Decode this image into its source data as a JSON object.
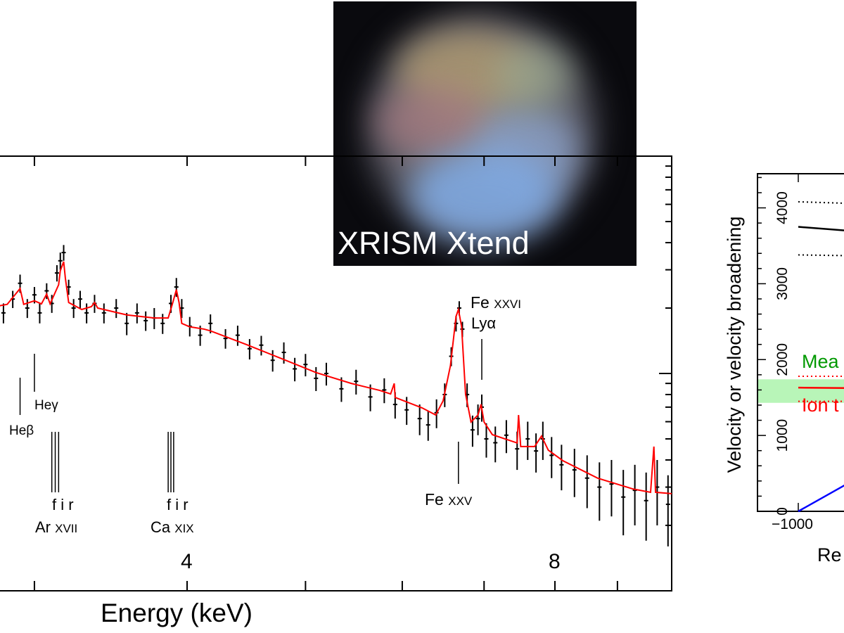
{
  "image_panel": {
    "title": "XRISM Xtend"
  },
  "chart_data": [
    {
      "type": "line",
      "xlabel": "Energy (keV)",
      "ylabel": "",
      "x_scale": "log",
      "y_scale": "log",
      "xlim": [
        2.81,
        10.0
      ],
      "ylim": [
        0.01,
        1
      ],
      "x_tick_labels": [
        "4",
        "8"
      ],
      "x_ticks": [
        3,
        4,
        5,
        6,
        7,
        8,
        9,
        10
      ],
      "grid": false,
      "model_color": "#ff0000",
      "data_color": "#000000",
      "model": [
        [
          2.81,
          0.205
        ],
        [
          2.85,
          0.208
        ],
        [
          2.92,
          0.246
        ],
        [
          2.94,
          0.208
        ],
        [
          3.0,
          0.216
        ],
        [
          3.04,
          0.209
        ],
        [
          3.07,
          0.232
        ],
        [
          3.09,
          0.209
        ],
        [
          3.14,
          0.256
        ],
        [
          3.15,
          0.297
        ],
        [
          3.17,
          0.327
        ],
        [
          3.18,
          0.275
        ],
        [
          3.2,
          0.212
        ],
        [
          3.28,
          0.197
        ],
        [
          3.34,
          0.203
        ],
        [
          3.36,
          0.212
        ],
        [
          3.38,
          0.2
        ],
        [
          3.57,
          0.186
        ],
        [
          3.76,
          0.18
        ],
        [
          3.86,
          0.18
        ],
        [
          3.89,
          0.208
        ],
        [
          3.92,
          0.243
        ],
        [
          3.94,
          0.212
        ],
        [
          3.96,
          0.17
        ],
        [
          4.02,
          0.164
        ],
        [
          4.13,
          0.16
        ],
        [
          4.18,
          0.157
        ],
        [
          4.47,
          0.136
        ],
        [
          4.78,
          0.117
        ],
        [
          5.1,
          0.101
        ],
        [
          5.45,
          0.09
        ],
        [
          5.75,
          0.0836
        ],
        [
          5.87,
          0.0805
        ],
        [
          5.91,
          0.09
        ],
        [
          5.92,
          0.0776
        ],
        [
          6.23,
          0.0694
        ],
        [
          6.39,
          0.0644
        ],
        [
          6.48,
          0.0748
        ],
        [
          6.57,
          0.1086
        ],
        [
          6.64,
          0.183
        ],
        [
          6.67,
          0.197
        ],
        [
          6.71,
          0.164
        ],
        [
          6.76,
          0.0805
        ],
        [
          6.83,
          0.0598
        ],
        [
          6.92,
          0.0644
        ],
        [
          6.96,
          0.0721
        ],
        [
          7.0,
          0.0598
        ],
        [
          7.11,
          0.0523
        ],
        [
          7.45,
          0.0479
        ],
        [
          7.47,
          0.0644
        ],
        [
          7.5,
          0.0461
        ],
        [
          7.7,
          0.0461
        ],
        [
          7.8,
          0.0515
        ],
        [
          7.9,
          0.0444
        ],
        [
          8.12,
          0.0397
        ],
        [
          8.67,
          0.033
        ],
        [
          9.27,
          0.0294
        ],
        [
          9.58,
          0.0284
        ],
        [
          9.64,
          0.0461
        ],
        [
          9.67,
          0.0284
        ],
        [
          9.97,
          0.028
        ]
      ],
      "data": [
        [
          2.83,
          0.19,
          0.02
        ],
        [
          2.88,
          0.22,
          0.02
        ],
        [
          2.92,
          0.26,
          0.025
        ],
        [
          2.96,
          0.2,
          0.02
        ],
        [
          3.0,
          0.23,
          0.02
        ],
        [
          3.03,
          0.19,
          0.02
        ],
        [
          3.07,
          0.24,
          0.02
        ],
        [
          3.1,
          0.21,
          0.02
        ],
        [
          3.13,
          0.29,
          0.025
        ],
        [
          3.15,
          0.33,
          0.03
        ],
        [
          3.17,
          0.36,
          0.03
        ],
        [
          3.2,
          0.25,
          0.02
        ],
        [
          3.23,
          0.2,
          0.02
        ],
        [
          3.27,
          0.22,
          0.02
        ],
        [
          3.31,
          0.19,
          0.02
        ],
        [
          3.36,
          0.21,
          0.02
        ],
        [
          3.42,
          0.19,
          0.02
        ],
        [
          3.5,
          0.2,
          0.02
        ],
        [
          3.57,
          0.17,
          0.02
        ],
        [
          3.64,
          0.19,
          0.02
        ],
        [
          3.7,
          0.175,
          0.018
        ],
        [
          3.76,
          0.18,
          0.02
        ],
        [
          3.82,
          0.17,
          0.018
        ],
        [
          3.88,
          0.21,
          0.02
        ],
        [
          3.92,
          0.25,
          0.025
        ],
        [
          3.96,
          0.2,
          0.02
        ],
        [
          4.02,
          0.165,
          0.017
        ],
        [
          4.1,
          0.15,
          0.016
        ],
        [
          4.18,
          0.17,
          0.017
        ],
        [
          4.3,
          0.145,
          0.015
        ],
        [
          4.4,
          0.15,
          0.016
        ],
        [
          4.5,
          0.13,
          0.014
        ],
        [
          4.6,
          0.135,
          0.014
        ],
        [
          4.7,
          0.115,
          0.013
        ],
        [
          4.8,
          0.125,
          0.014
        ],
        [
          4.9,
          0.105,
          0.013
        ],
        [
          5.0,
          0.11,
          0.013
        ],
        [
          5.1,
          0.095,
          0.012
        ],
        [
          5.2,
          0.1,
          0.012
        ],
        [
          5.35,
          0.085,
          0.011
        ],
        [
          5.5,
          0.092,
          0.012
        ],
        [
          5.65,
          0.078,
          0.011
        ],
        [
          5.8,
          0.084,
          0.011
        ],
        [
          5.92,
          0.072,
          0.01
        ],
        [
          6.05,
          0.068,
          0.01
        ],
        [
          6.2,
          0.062,
          0.01
        ],
        [
          6.3,
          0.058,
          0.009
        ],
        [
          6.4,
          0.066,
          0.01
        ],
        [
          6.5,
          0.08,
          0.01
        ],
        [
          6.58,
          0.12,
          0.012
        ],
        [
          6.64,
          0.17,
          0.014
        ],
        [
          6.68,
          0.2,
          0.015
        ],
        [
          6.72,
          0.16,
          0.013
        ],
        [
          6.78,
          0.08,
          0.01
        ],
        [
          6.85,
          0.055,
          0.009
        ],
        [
          6.92,
          0.062,
          0.01
        ],
        [
          6.97,
          0.07,
          0.01
        ],
        [
          7.03,
          0.05,
          0.009
        ],
        [
          7.15,
          0.048,
          0.009
        ],
        [
          7.3,
          0.052,
          0.009
        ],
        [
          7.45,
          0.045,
          0.009
        ],
        [
          7.6,
          0.05,
          0.01
        ],
        [
          7.72,
          0.044,
          0.009
        ],
        [
          7.82,
          0.05,
          0.01
        ],
        [
          7.95,
          0.042,
          0.009
        ],
        [
          8.1,
          0.038,
          0.009
        ],
        [
          8.3,
          0.036,
          0.009
        ],
        [
          8.5,
          0.033,
          0.009
        ],
        [
          8.7,
          0.03,
          0.009
        ],
        [
          8.9,
          0.031,
          0.009
        ],
        [
          9.1,
          0.027,
          0.009
        ],
        [
          9.3,
          0.029,
          0.009
        ],
        [
          9.5,
          0.026,
          0.009
        ],
        [
          9.7,
          0.03,
          0.01
        ],
        [
          9.9,
          0.025,
          0.009
        ]
      ],
      "annotations": {
        "fe26": {
          "element": "Fe",
          "ion": "XXVI",
          "line": "Lyα",
          "energy": 6.97
        },
        "fe25": {
          "element": "Fe",
          "ion": "XXV",
          "energy": 6.67
        },
        "he_beta": {
          "label": "Heβ",
          "energy": 2.92
        },
        "he_gamma": {
          "label": "Heγ",
          "energy": 3.0
        },
        "ar": {
          "triplet": "f i r",
          "element": "Ar",
          "ion": "XVII",
          "energies": [
            3.1,
            3.12,
            3.14
          ]
        },
        "ca": {
          "triplet": "f i r",
          "element": "Ca",
          "ion": "XIX",
          "energies": [
            3.86,
            3.88,
            3.9
          ]
        }
      }
    },
    {
      "type": "line",
      "ylabel": "Velocity or velocity broadening",
      "xlabel": "Re",
      "ylim": [
        0,
        4450
      ],
      "y_ticks": [
        0,
        1000,
        2000,
        3000,
        4000
      ],
      "x_tick_labels": [
        "−1000"
      ],
      "grid": false,
      "series": [
        {
          "color": "#000000",
          "style": "solid",
          "values": [
            [
              -1000,
              3750
            ],
            [
              -700,
              3700
            ]
          ]
        },
        {
          "color": "#000000",
          "style": "dotted",
          "values": [
            [
              -1000,
              4080
            ],
            [
              -700,
              4060
            ]
          ]
        },
        {
          "color": "#000000",
          "style": "dotted",
          "values": [
            [
              -1000,
              3380
            ],
            [
              -700,
              3370
            ]
          ]
        },
        {
          "color": "#ff0000",
          "style": "solid",
          "values": [
            [
              -1000,
              1630
            ],
            [
              -700,
              1625
            ]
          ]
        },
        {
          "color": "#ff0000",
          "style": "dotted",
          "values": [
            [
              -1000,
              1780
            ],
            [
              -700,
              1780
            ]
          ]
        },
        {
          "color": "#ff0000",
          "style": "dotted",
          "values": [
            [
              -1000,
              1450
            ],
            [
              -700,
              1450
            ]
          ]
        },
        {
          "color": "#0000ff",
          "style": "solid",
          "values": [
            [
              -1000,
              0
            ],
            [
              -700,
              360
            ]
          ]
        }
      ],
      "band": {
        "color": "#b8f5b8",
        "range": [
          1430,
          1740
        ]
      },
      "labels": {
        "mean": {
          "text": "Mea",
          "color": "#009900"
        },
        "ion": {
          "text": "Ion t",
          "color": "#ff0000"
        }
      }
    }
  ]
}
